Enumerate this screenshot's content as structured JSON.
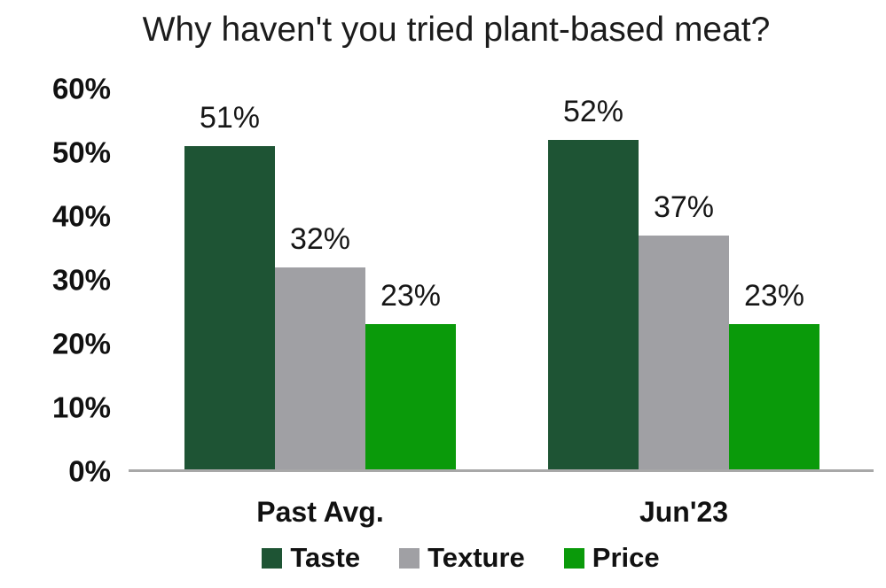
{
  "chart_data": {
    "type": "bar",
    "title": "Why haven't you tried plant-based meat?",
    "categories": [
      "Past Avg.",
      "Jun'23"
    ],
    "series": [
      {
        "name": "Taste",
        "color": "#1e5434",
        "values": [
          51,
          52
        ]
      },
      {
        "name": "Texture",
        "color": "#a0a0a4",
        "values": [
          32,
          37
        ]
      },
      {
        "name": "Price",
        "color": "#0a9a0a",
        "values": [
          23,
          23
        ]
      }
    ],
    "value_suffix": "%",
    "ylabel": "",
    "xlabel": "",
    "ylim": [
      0,
      60
    ],
    "yticks": [
      "0%",
      "10%",
      "20%",
      "30%",
      "40%",
      "50%",
      "60%"
    ],
    "grid": false,
    "legend_position": "bottom",
    "axis_line_color": "#a8a8a8"
  }
}
